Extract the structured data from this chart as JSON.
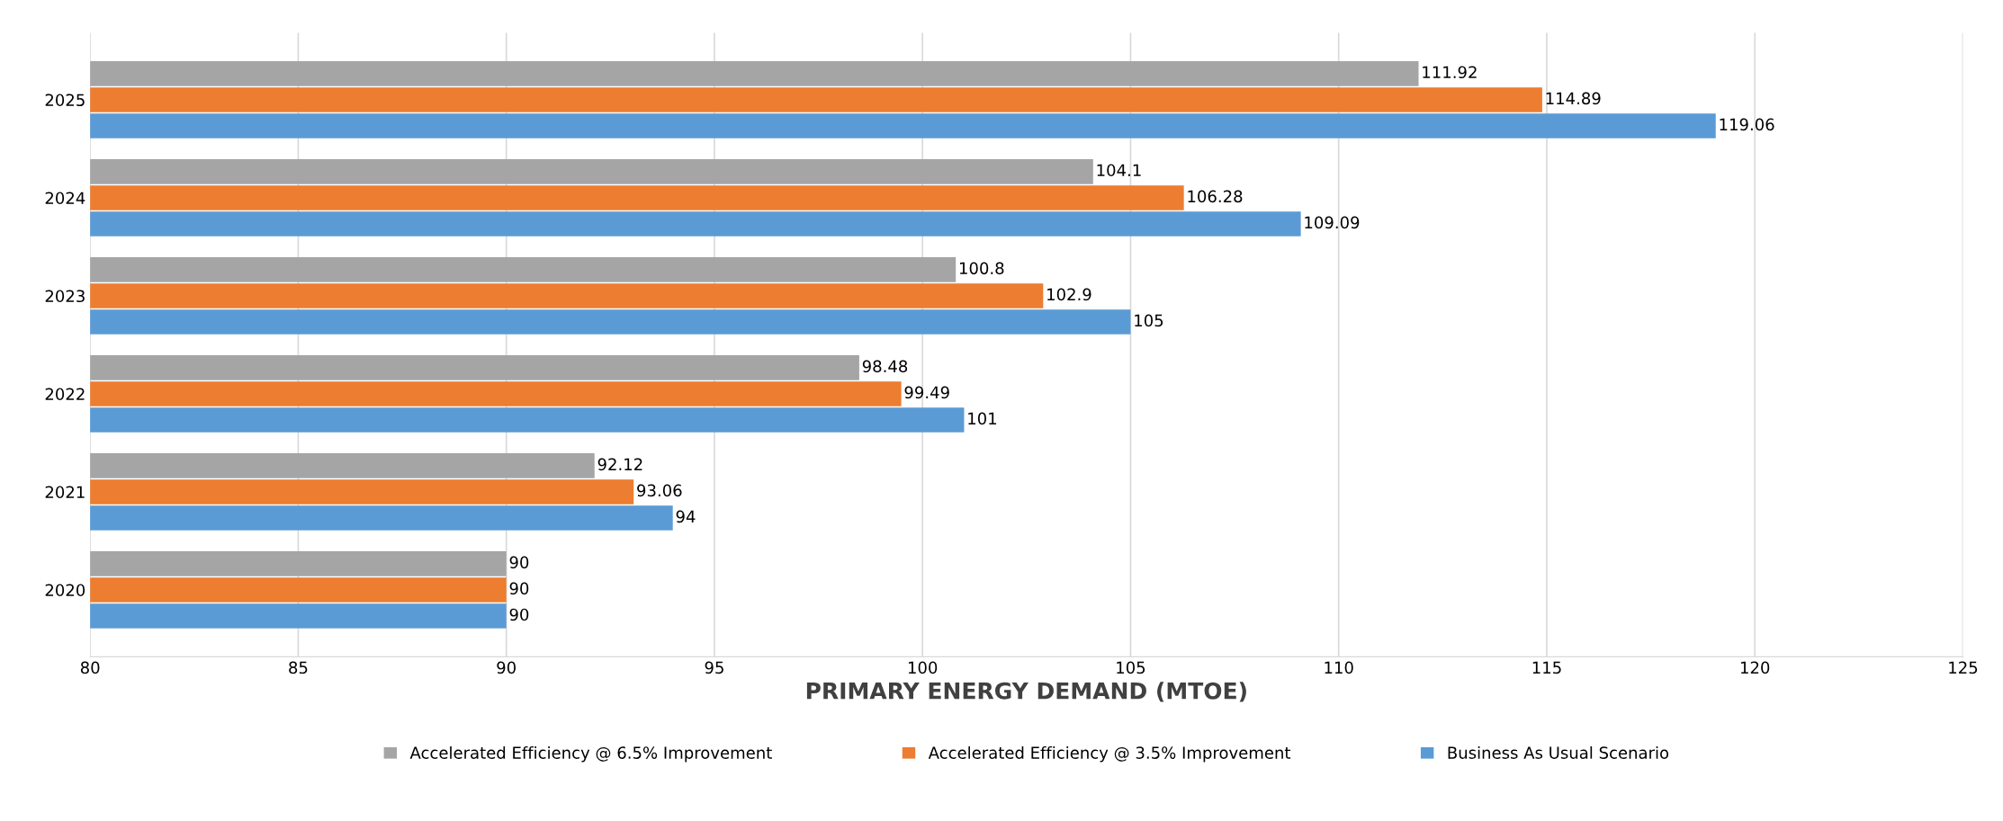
{
  "chart_data": {
    "type": "bar",
    "orientation": "horizontal",
    "xlabel": "PRIMARY ENERGY DEMAND (MTOE)",
    "categories": [
      "2025",
      "2024",
      "2023",
      "2022",
      "2021",
      "2020"
    ],
    "series": [
      {
        "name": "Accelerated Efficiency @ 6.5% Improvement",
        "color": "#a5a5a5",
        "values": [
          111.92,
          104.1,
          100.8,
          98.48,
          92.12,
          90
        ]
      },
      {
        "name": "Accelerated Efficiency @ 3.5% Improvement",
        "color": "#ed7d31",
        "values": [
          114.89,
          106.28,
          102.9,
          99.49,
          93.06,
          90
        ]
      },
      {
        "name": "Business As Usual Scenario",
        "color": "#5b9bd5",
        "values": [
          119.06,
          109.09,
          105,
          101,
          94,
          90
        ]
      }
    ],
    "xlim": [
      80,
      125
    ],
    "xticks": [
      80,
      85,
      90,
      95,
      100,
      105,
      110,
      115,
      120,
      125
    ],
    "grid": "x",
    "legend": "bottom",
    "data_labels": true
  }
}
